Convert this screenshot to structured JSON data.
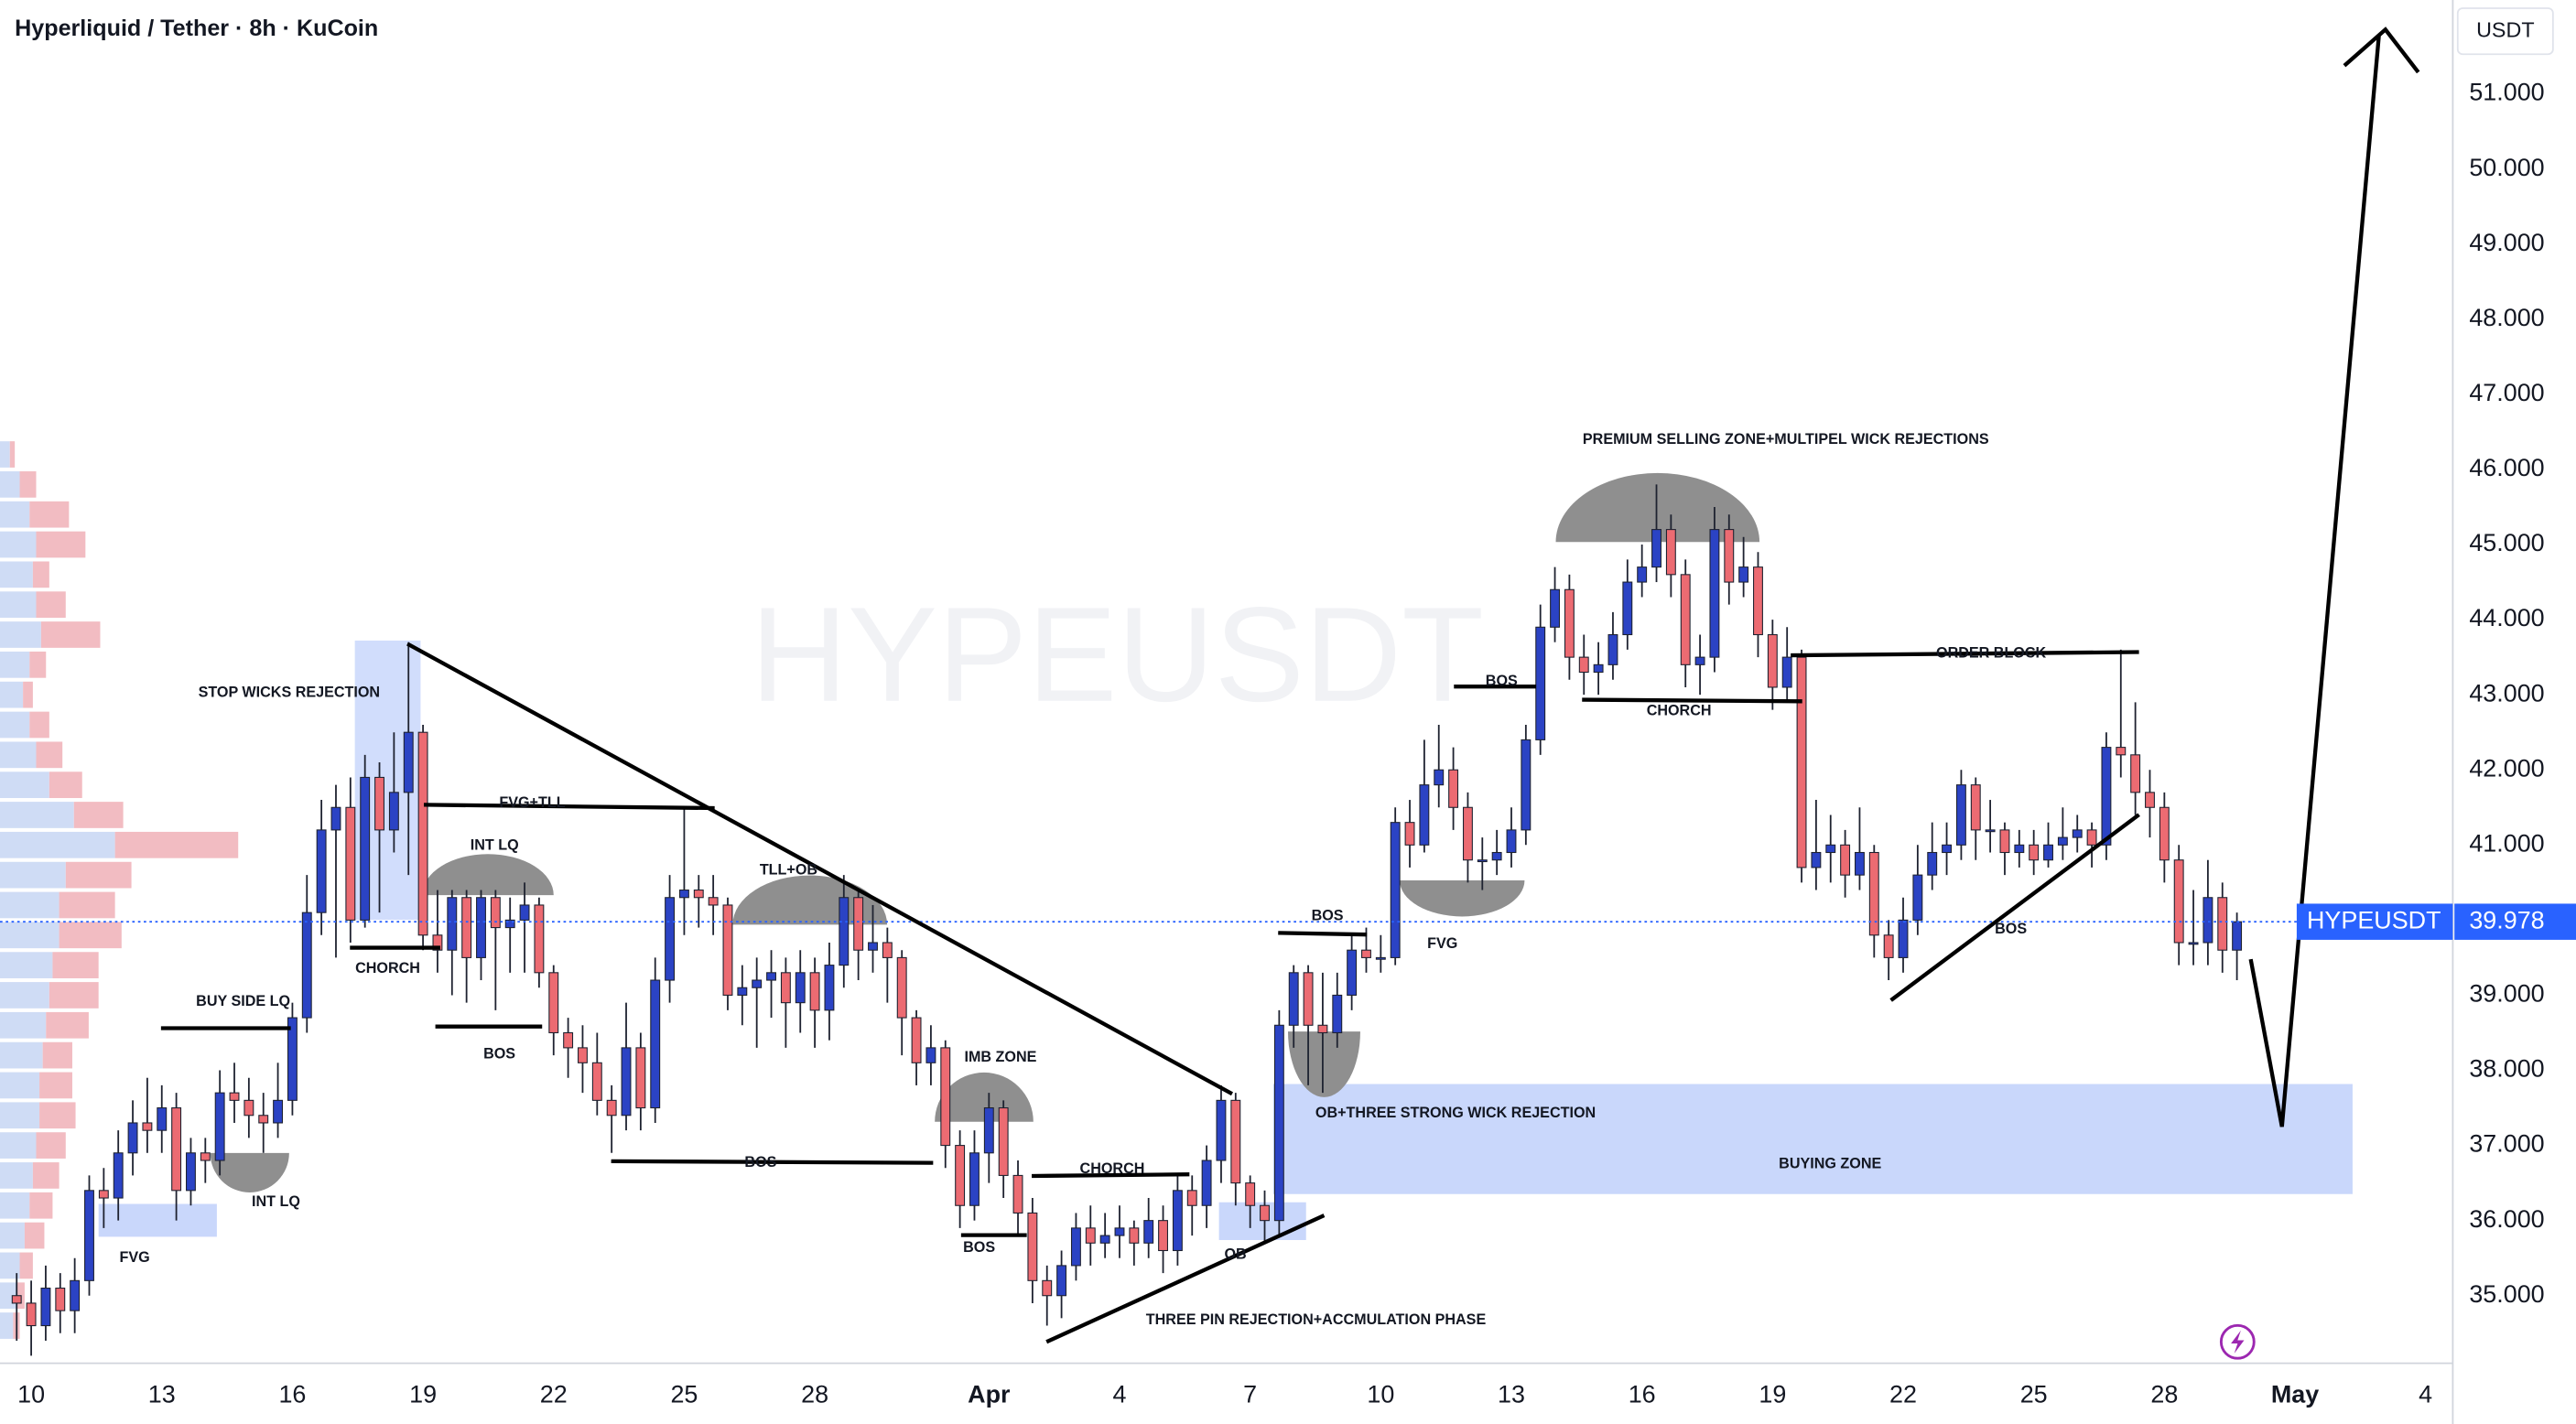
{
  "chart_data": {
    "type": "candlestick",
    "title": "Hyperliquid / Tether · 8h · KuCoin",
    "currency_label": "USDT",
    "watermark": "HYPEUSDT",
    "up_color": "#2b43c4",
    "down_color": "#ec6b72",
    "wick_color": "#1e2230",
    "x": [
      -8,
      0,
      8,
      16,
      24,
      32,
      40,
      48,
      56,
      64,
      72,
      80,
      88,
      96,
      104,
      112,
      120,
      128,
      136,
      144,
      152,
      160,
      168,
      176,
      184,
      192,
      200,
      208,
      216,
      224,
      232,
      240,
      248,
      256,
      264,
      272,
      280,
      288,
      296,
      304,
      312,
      320,
      328,
      336,
      344,
      352,
      360,
      368,
      376,
      384,
      392,
      400,
      408,
      416,
      424,
      432,
      440,
      448,
      456,
      464,
      472,
      480,
      488,
      496,
      504,
      512,
      520,
      528,
      536,
      544,
      552,
      560,
      568,
      576,
      584,
      592,
      600,
      608,
      616,
      624,
      632,
      640,
      648,
      656,
      664,
      672,
      680,
      688,
      696,
      704,
      712,
      720,
      728,
      736,
      744,
      752,
      760,
      768,
      776,
      784,
      792,
      800,
      808,
      816,
      824,
      832,
      840,
      848,
      856,
      864,
      872,
      880,
      888,
      896,
      904,
      912,
      920,
      928,
      936,
      944,
      952,
      960,
      968,
      976,
      984,
      992,
      1000,
      1008,
      1016,
      1024,
      1032,
      1040,
      1048,
      1056,
      1064,
      1072,
      1080,
      1088,
      1096,
      1104,
      1112,
      1120,
      1128,
      1136,
      1144,
      1152,
      1160,
      1168,
      1176,
      1184,
      1192,
      1200,
      1208,
      1216
    ],
    "open": [
      35.0,
      34.9,
      34.6,
      35.1,
      34.8,
      35.2,
      36.4,
      36.3,
      36.9,
      37.3,
      37.2,
      37.5,
      36.4,
      36.9,
      36.8,
      37.7,
      37.6,
      37.4,
      37.3,
      37.6,
      38.7,
      40.1,
      41.2,
      41.5,
      40.0,
      41.9,
      41.2,
      41.7,
      42.5,
      39.8,
      39.6,
      40.3,
      39.5,
      40.3,
      39.9,
      40.0,
      40.2,
      39.3,
      38.5,
      38.3,
      38.1,
      37.6,
      37.4,
      38.3,
      37.5,
      39.2,
      40.3,
      40.4,
      40.3,
      40.2,
      39.0,
      39.1,
      39.2,
      39.3,
      38.9,
      39.3,
      38.8,
      39.4,
      40.3,
      39.6,
      39.7,
      39.5,
      38.7,
      38.1,
      38.3,
      37.0,
      36.2,
      36.9,
      37.5,
      36.6,
      36.1,
      35.2,
      35.0,
      35.4,
      35.9,
      35.7,
      35.8,
      35.9,
      35.7,
      36.0,
      35.6,
      36.4,
      36.2,
      36.8,
      37.6,
      36.5,
      36.2,
      36.0,
      38.6,
      39.3,
      38.6,
      38.5,
      39.0,
      39.6,
      39.5,
      39.5,
      41.3,
      41.0,
      41.8,
      42.0,
      41.5,
      40.8,
      40.8,
      40.9,
      41.2,
      42.4,
      43.9,
      44.4,
      43.5,
      43.3,
      43.4,
      43.8,
      44.5,
      44.7,
      45.2,
      44.6,
      43.4,
      43.5,
      45.2,
      44.5,
      44.7,
      43.8,
      43.1,
      43.5,
      40.7,
      40.9,
      41.0,
      40.6,
      40.9,
      39.8,
      39.5,
      40.0,
      40.6,
      40.9,
      41.0,
      41.8,
      41.2,
      41.2,
      40.9,
      41.0,
      40.8,
      41.0,
      41.1,
      41.2,
      41.0,
      42.3,
      42.2,
      41.7,
      41.5,
      40.8,
      39.7,
      39.7,
      40.3,
      39.6
    ],
    "high": [
      35.3,
      35.2,
      35.4,
      35.3,
      35.5,
      36.6,
      36.7,
      37.2,
      37.6,
      37.9,
      37.8,
      37.7,
      37.1,
      37.1,
      38.0,
      38.1,
      37.9,
      37.7,
      38.1,
      38.9,
      40.6,
      41.6,
      41.8,
      41.9,
      42.2,
      42.1,
      42.5,
      43.7,
      42.6,
      40.4,
      40.4,
      40.4,
      40.4,
      40.4,
      40.3,
      40.5,
      40.3,
      39.4,
      38.7,
      38.6,
      38.5,
      37.8,
      38.9,
      38.5,
      39.5,
      40.6,
      41.5,
      40.6,
      40.6,
      40.3,
      39.4,
      39.5,
      39.6,
      39.5,
      39.6,
      39.5,
      39.7,
      40.6,
      40.4,
      40.2,
      39.9,
      39.6,
      38.8,
      38.6,
      38.4,
      37.2,
      37.2,
      37.7,
      37.6,
      36.8,
      36.3,
      35.4,
      35.6,
      36.1,
      36.2,
      36.1,
      36.2,
      36.0,
      36.3,
      36.2,
      36.6,
      36.6,
      37.0,
      37.8,
      37.7,
      36.6,
      36.4,
      38.8,
      39.4,
      39.4,
      39.3,
      39.3,
      39.8,
      39.9,
      39.8,
      41.5,
      41.6,
      42.4,
      42.6,
      42.3,
      41.7,
      41.1,
      41.2,
      41.5,
      42.6,
      44.2,
      44.7,
      44.6,
      43.8,
      43.7,
      44.1,
      44.8,
      45.0,
      45.8,
      45.4,
      44.8,
      43.8,
      45.5,
      45.4,
      45.1,
      44.9,
      44.0,
      43.9,
      43.6,
      41.6,
      41.4,
      41.2,
      41.5,
      41.0,
      40.0,
      40.3,
      41.0,
      41.3,
      41.3,
      42.0,
      41.9,
      41.6,
      41.3,
      41.2,
      41.2,
      41.3,
      41.5,
      41.4,
      41.3,
      42.5,
      43.6,
      42.9,
      42.0,
      41.7,
      41.0,
      40.4,
      40.8,
      40.5,
      40.1
    ],
    "low": [
      34.4,
      34.2,
      34.4,
      34.5,
      34.5,
      35.0,
      35.9,
      36.0,
      36.6,
      36.9,
      36.9,
      36.0,
      36.2,
      36.5,
      36.6,
      37.3,
      37.1,
      36.9,
      37.1,
      37.4,
      38.5,
      39.8,
      39.5,
      39.7,
      39.9,
      40.1,
      40.9,
      40.6,
      39.6,
      39.3,
      39.0,
      38.9,
      39.2,
      38.8,
      39.3,
      39.3,
      39.1,
      38.2,
      37.9,
      37.7,
      37.4,
      36.9,
      37.2,
      37.2,
      37.3,
      38.9,
      39.8,
      39.9,
      39.8,
      38.8,
      38.6,
      38.3,
      38.7,
      38.3,
      38.5,
      38.3,
      38.4,
      39.1,
      39.2,
      39.3,
      38.9,
      38.2,
      37.8,
      37.8,
      36.7,
      35.9,
      36.0,
      36.5,
      36.3,
      35.8,
      34.9,
      34.6,
      34.7,
      35.2,
      35.4,
      35.5,
      35.5,
      35.4,
      35.5,
      35.3,
      35.4,
      35.8,
      35.9,
      36.5,
      36.2,
      35.9,
      35.7,
      35.8,
      38.3,
      37.8,
      37.7,
      38.3,
      38.8,
      39.3,
      39.3,
      39.4,
      40.7,
      40.9,
      41.5,
      41.2,
      40.5,
      40.4,
      40.6,
      40.7,
      41.0,
      42.2,
      43.7,
      43.2,
      43.0,
      43.0,
      43.2,
      43.6,
      44.3,
      44.5,
      44.3,
      43.1,
      43.0,
      43.3,
      44.2,
      44.3,
      43.5,
      42.8,
      42.9,
      40.5,
      40.4,
      40.5,
      40.3,
      40.4,
      39.5,
      39.2,
      39.3,
      39.8,
      40.4,
      40.6,
      40.8,
      40.8,
      40.9,
      40.6,
      40.7,
      40.6,
      40.7,
      40.8,
      40.9,
      40.7,
      40.8,
      41.9,
      41.4,
      41.1,
      40.5,
      39.4,
      39.4,
      39.4,
      39.3,
      39.2
    ],
    "close": [
      34.9,
      34.6,
      35.1,
      34.8,
      35.2,
      36.4,
      36.3,
      36.9,
      37.3,
      37.2,
      37.5,
      36.4,
      36.9,
      36.8,
      37.7,
      37.6,
      37.4,
      37.3,
      37.6,
      38.7,
      40.1,
      41.2,
      41.5,
      40.0,
      41.9,
      41.2,
      41.7,
      42.5,
      39.8,
      39.6,
      40.3,
      39.5,
      40.3,
      39.9,
      40.0,
      40.2,
      39.3,
      38.5,
      38.3,
      38.1,
      37.6,
      37.4,
      38.3,
      37.5,
      39.2,
      40.3,
      40.4,
      40.3,
      40.2,
      39.0,
      39.1,
      39.2,
      39.3,
      38.9,
      39.3,
      38.8,
      39.4,
      40.3,
      39.6,
      39.7,
      39.5,
      38.7,
      38.1,
      38.3,
      37.0,
      36.2,
      36.9,
      37.5,
      36.6,
      36.1,
      35.2,
      35.0,
      35.4,
      35.9,
      35.7,
      35.8,
      35.9,
      35.7,
      36.0,
      35.6,
      36.4,
      36.2,
      36.8,
      37.6,
      36.5,
      36.2,
      36.0,
      38.6,
      39.3,
      38.6,
      38.5,
      39.0,
      39.6,
      39.5,
      39.5,
      41.3,
      41.0,
      41.8,
      42.0,
      41.5,
      40.8,
      40.8,
      40.9,
      41.2,
      42.4,
      43.9,
      44.4,
      43.5,
      43.3,
      43.4,
      43.8,
      44.5,
      44.7,
      45.2,
      44.6,
      43.4,
      43.5,
      45.2,
      44.5,
      44.7,
      43.8,
      43.1,
      43.5,
      40.7,
      40.9,
      41.0,
      40.6,
      40.9,
      39.8,
      39.5,
      40.0,
      40.6,
      40.9,
      41.0,
      41.8,
      41.2,
      41.2,
      40.9,
      41.0,
      40.8,
      41.0,
      41.1,
      41.2,
      41.0,
      42.3,
      42.2,
      41.7,
      41.5,
      40.8,
      39.7,
      39.7,
      40.3,
      39.6,
      39.978
    ],
    "xlim": [
      -17.2,
      1335
    ],
    "xticks": [
      {
        "value": 0,
        "label": "10"
      },
      {
        "value": 72,
        "label": "13"
      },
      {
        "value": 144,
        "label": "16"
      },
      {
        "value": 216,
        "label": "19"
      },
      {
        "value": 288,
        "label": "22"
      },
      {
        "value": 360,
        "label": "25"
      },
      {
        "value": 432,
        "label": "28"
      },
      {
        "value": 528,
        "label": "Apr"
      },
      {
        "value": 600,
        "label": "4"
      },
      {
        "value": 672,
        "label": "7"
      },
      {
        "value": 744,
        "label": "10"
      },
      {
        "value": 816,
        "label": "13"
      },
      {
        "value": 888,
        "label": "16"
      },
      {
        "value": 960,
        "label": "19"
      },
      {
        "value": 1032,
        "label": "22"
      },
      {
        "value": 1104,
        "label": "25"
      },
      {
        "value": 1176,
        "label": "28"
      },
      {
        "value": 1248,
        "label": "May"
      },
      {
        "value": 1320,
        "label": "4"
      }
    ],
    "ylim": [
      34.1,
      52.25
    ],
    "yticks": [
      {
        "value": 35,
        "label": "35.000"
      },
      {
        "value": 36,
        "label": "36.000"
      },
      {
        "value": 37,
        "label": "37.000"
      },
      {
        "value": 38,
        "label": "38.000"
      },
      {
        "value": 39,
        "label": "39.000"
      },
      {
        "value": 40,
        "label": "40.000"
      },
      {
        "value": 41,
        "label": "41.000"
      },
      {
        "value": 42,
        "label": "42.000"
      },
      {
        "value": 43,
        "label": "43.000"
      },
      {
        "value": 44,
        "label": "44.000"
      },
      {
        "value": 45,
        "label": "45.000"
      },
      {
        "value": 46,
        "label": "46.000"
      },
      {
        "value": 47,
        "label": "47.000"
      },
      {
        "value": 48,
        "label": "48.000"
      },
      {
        "value": 49,
        "label": "49.000"
      },
      {
        "value": 50,
        "label": "50.000"
      },
      {
        "value": 51,
        "label": "51.000"
      }
    ],
    "last_price": {
      "name": "HYPEUSDT",
      "value": 39.978,
      "color": "#2962ff"
    },
    "volume_profile": {
      "prices": [
        34.6,
        35.0,
        35.4,
        35.8,
        36.2,
        36.6,
        37.0,
        37.4,
        37.8,
        38.2,
        38.6,
        39.0,
        39.4,
        39.8,
        40.2,
        40.6,
        41.0,
        41.4,
        41.8,
        42.2,
        42.6,
        43.0,
        43.4,
        43.8,
        44.2,
        44.6,
        45.0,
        45.4,
        45.8,
        46.2
      ],
      "buy": [
        8,
        10,
        12,
        15,
        18,
        20,
        22,
        24,
        24,
        26,
        28,
        30,
        32,
        36,
        36,
        40,
        70,
        45,
        30,
        22,
        18,
        14,
        18,
        25,
        22,
        20,
        22,
        18,
        12,
        6
      ],
      "sell": [
        4,
        5,
        8,
        12,
        14,
        16,
        18,
        22,
        20,
        18,
        26,
        30,
        28,
        38,
        34,
        40,
        75,
        30,
        20,
        16,
        12,
        6,
        10,
        36,
        18,
        10,
        30,
        24,
        10,
        3
      ],
      "buy_color": "#cfdcf5",
      "sell_color": "#f2bcc2"
    },
    "annotations": [
      "STOP WICKS REJECTION",
      "FVG+TLL",
      "INT LQ",
      "CHORCH",
      "BOS",
      "BUY SIDE LQ",
      "INT LQ",
      "FVG",
      "TLL+OB",
      "BOS",
      "IMB ZONE",
      "BOS",
      "CHORCH",
      "OB",
      "THREE PIN REJECTION+ACCMULATION PHASE",
      "BOS",
      "FVG",
      "BOS",
      "OB+THREE STRONG WICK REJECTION",
      "BUYING ZONE",
      "PREMIUM SELLING ZONE+MULTIPEL WICK REJECTIONS",
      "CHORCH",
      "ORDER BLOCK",
      "BOS"
    ]
  }
}
